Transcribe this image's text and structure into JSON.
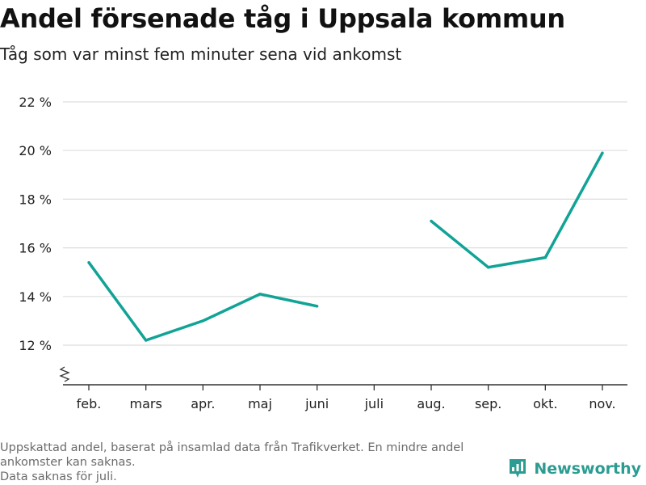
{
  "title": "Andel försenade tåg i Uppsala kommun",
  "subtitle": "Tåg som var minst fem minuter sena vid ankomst",
  "footnote": {
    "line1": "Uppskattad andel, baserat på insamlad data från Trafikverket. En mindre andel ankomster kan saknas.",
    "line2": "Data saknas för juli."
  },
  "brand": {
    "name": "Newsworthy",
    "color": "#2a9c91",
    "icon": "bar-chart-logo-icon"
  },
  "colors": {
    "line": "#11a396",
    "grid": "#dddddd",
    "axis": "#333333"
  },
  "chart_data": {
    "type": "line",
    "title": "Andel försenade tåg i Uppsala kommun",
    "subtitle": "Tåg som var minst fem minuter sena vid ankomst",
    "xlabel": "",
    "ylabel": "",
    "categories": [
      "feb.",
      "mars",
      "apr.",
      "maj",
      "juni",
      "juli",
      "aug.",
      "sep.",
      "okt.",
      "nov."
    ],
    "series": [
      {
        "values": [
          15.4,
          12.2,
          13.0,
          14.1,
          13.6,
          null,
          17.1,
          15.2,
          15.6,
          19.9
        ]
      }
    ],
    "yticks": [
      12,
      14,
      16,
      18,
      20,
      22
    ],
    "ytick_labels": [
      "12 %",
      "14 %",
      "16 %",
      "18 %",
      "20 %",
      "22 %"
    ],
    "ylim": [
      10.5,
      22
    ],
    "axis_break": true,
    "grid": true,
    "legend": "none"
  }
}
